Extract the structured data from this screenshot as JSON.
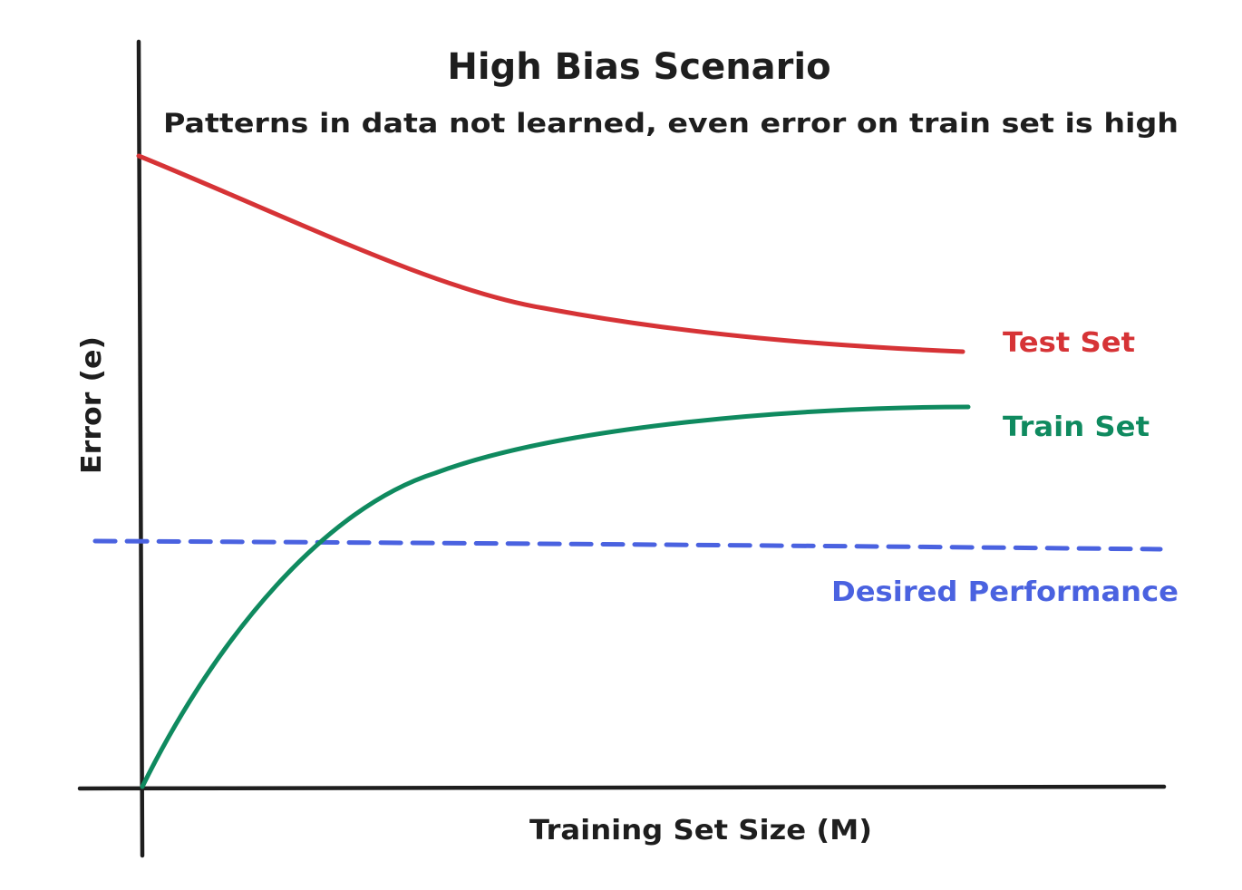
{
  "title": "High Bias Scenario",
  "subtitle": "Patterns in data not learned, even error on train set is high",
  "axes": {
    "xlabel": "Training Set Size (M)",
    "ylabel": "Error (e)"
  },
  "curves": {
    "test": {
      "label": "Test Set",
      "color": "#d63336"
    },
    "train": {
      "label": "Train Set",
      "color": "#0f8a5f"
    },
    "desired": {
      "label": "Desired Performance",
      "color": "#4a62e0"
    }
  },
  "colors": {
    "axis": "#1e1e1e",
    "text": "#1e1e1e",
    "background": "#ffffff"
  }
}
